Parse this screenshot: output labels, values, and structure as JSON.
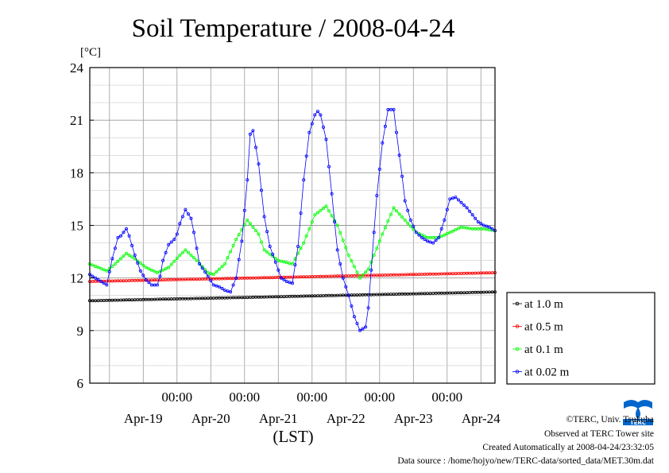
{
  "chart_data": {
    "type": "line",
    "title": "Soil Temperature / 2008-04-24",
    "ylabel": "[°C]",
    "xlabel": "(LST)",
    "ylim": [
      6,
      24
    ],
    "yticks": [
      6,
      9,
      12,
      15,
      18,
      21,
      24
    ],
    "xlim_hours_note": "",
    "x_time_ticks": [
      "00:00",
      "00:00",
      "00:00",
      "00:00",
      "00:00"
    ],
    "x_date_labels": [
      "Apr-19",
      "Apr-20",
      "Apr-21",
      "Apr-22",
      "Apr-23",
      "Apr-24"
    ],
    "grid": true,
    "legend_placement": "lower-right outside",
    "series": [
      {
        "name": "at 1.0 m",
        "color": "#000000",
        "x_hours": [
          0,
          144
        ],
        "values": [
          10.7,
          11.2
        ]
      },
      {
        "name": "at 0.5 m",
        "color": "#ff0000",
        "x_hours": [
          0,
          144
        ],
        "values": [
          11.8,
          12.3
        ]
      },
      {
        "name": "at 0.1 m",
        "color": "#00ff00",
        "x_hours": [
          0,
          3,
          6,
          9,
          13,
          16,
          20,
          24,
          28,
          32,
          34,
          38,
          42,
          44,
          48,
          52,
          56,
          60,
          62,
          67,
          72,
          76,
          80,
          84,
          88,
          92,
          96,
          99,
          104,
          108,
          112,
          116,
          120,
          124,
          128,
          132,
          136,
          140,
          144
        ],
        "values": [
          12.8,
          12.6,
          12.4,
          12.8,
          13.4,
          13.1,
          12.6,
          12.3,
          12.6,
          13.3,
          13.6,
          13.0,
          12.3,
          12.2,
          12.8,
          14.2,
          15.3,
          14.5,
          13.6,
          13.0,
          12.8,
          14.0,
          15.6,
          16.1,
          15.0,
          13.3,
          12.0,
          12.5,
          14.5,
          16.0,
          15.3,
          14.6,
          14.3,
          14.3,
          14.6,
          14.9,
          14.8,
          14.8,
          14.7
        ]
      },
      {
        "name": "at 0.02 m",
        "color": "#0000ff",
        "x_hours": [
          0,
          3,
          6,
          8,
          10,
          11,
          13,
          14,
          16,
          18,
          20,
          22,
          24,
          25,
          26,
          28,
          30,
          31,
          32,
          34,
          36,
          37,
          39,
          42,
          44,
          46,
          48,
          50,
          52,
          54,
          56,
          57,
          58,
          60,
          62,
          64,
          66,
          68,
          70,
          72,
          74,
          76,
          78,
          80,
          81,
          82,
          84,
          86,
          88,
          90,
          92,
          94,
          96,
          98,
          99,
          101,
          102,
          104,
          106,
          108,
          110,
          111,
          112,
          114,
          116,
          118,
          120,
          122,
          124,
          126,
          128,
          130,
          132,
          134,
          136,
          138,
          140,
          142,
          144
        ],
        "values": [
          12.2,
          11.9,
          11.6,
          13.1,
          14.3,
          14.4,
          14.8,
          14.4,
          13.3,
          12.4,
          11.9,
          11.6,
          11.6,
          12.1,
          13.0,
          13.9,
          14.2,
          14.5,
          15.1,
          15.9,
          15.4,
          14.6,
          12.8,
          12.1,
          11.6,
          11.5,
          11.3,
          11.2,
          12.0,
          14.1,
          17.6,
          20.2,
          20.4,
          18.5,
          15.5,
          13.8,
          12.9,
          12.0,
          11.8,
          11.7,
          13.8,
          17.6,
          20.3,
          21.3,
          21.5,
          21.3,
          19.9,
          16.8,
          13.6,
          12.0,
          11.0,
          9.8,
          9.0,
          9.2,
          10.3,
          14.6,
          16.7,
          19.7,
          21.6,
          21.6,
          19.0,
          17.8,
          16.4,
          15.3,
          14.6,
          14.3,
          14.1,
          14.0,
          14.3,
          15.3,
          16.5,
          16.6,
          16.3,
          16.0,
          15.6,
          15.2,
          15.0,
          14.9,
          14.7
        ]
      }
    ]
  },
  "credits": {
    "copyright": "©TERC, Univ. Tsukuba",
    "observed": "Observed at TERC Tower site",
    "created": "Created Automatically at 2008-04-24/23:32:05",
    "source": "Data source : /home/hojyo/new/TERC-data/sorted_data/MET.30m.dat"
  },
  "logo": {
    "text": "TERC",
    "icon": "terc-logo-icon",
    "color": "#0066cc"
  }
}
